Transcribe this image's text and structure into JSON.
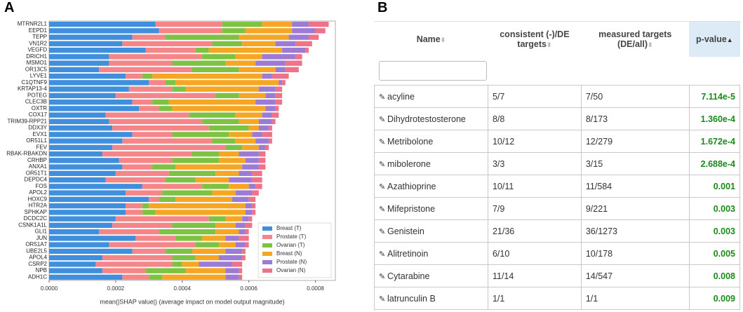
{
  "panels": {
    "a": "A",
    "b": "B"
  },
  "chart_data": {
    "type": "barh",
    "stacked": true,
    "legend": "lower right",
    "grid": false,
    "xlabel": "mean(|SHAP value|) (average impact on model output magnitude)",
    "xlim": [
      0,
      0.00086
    ],
    "xticks": [
      {
        "value": 0,
        "label": "0.0000"
      },
      {
        "value": 0.0002,
        "label": "0.0002"
      },
      {
        "value": 0.0004,
        "label": "0.0004"
      },
      {
        "value": 0.0006,
        "label": "0.0006"
      },
      {
        "value": 0.0008,
        "label": "0.0008"
      }
    ],
    "categories": [
      "MTRNR2L1",
      "EEPD1",
      "TEPP",
      "VN1R2",
      "VEGFD",
      "DRICH1",
      "MSMO1",
      "OR13C5",
      "LYVE1",
      "C1QTNF9",
      "KRTAP13-4",
      "POTEG",
      "CLEC3B",
      "OXTR",
      "COX17",
      "TRIM39-RPP21",
      "DDX3Y",
      "EVX1",
      "OR51L1",
      "FEV",
      "RBAK-RBAKDN",
      "CRHBP",
      "ANXA1",
      "OR51T1",
      "DEPDC4",
      "FOS",
      "APOL2",
      "HOXC9",
      "HTR2A",
      "SPHKAP",
      "DCDC2C",
      "CSNK1A1L",
      "GLI1",
      "JUN",
      "OR51A7",
      "UBE2L5",
      "APOL4",
      "CSRP2",
      "NPB",
      "ADH1C"
    ],
    "series": [
      {
        "name": "Breast (T)",
        "color": "#3f8fdc",
        "values": [
          0.00032,
          0.00033,
          0.00025,
          0.00022,
          0.00029,
          0.00018,
          0.00018,
          0.00015,
          0.00023,
          0.0003,
          0.00024,
          0.0002,
          0.00025,
          0.00027,
          0.00017,
          0.00018,
          0.00019,
          0.00025,
          0.00022,
          0.00019,
          0.00016,
          0.00021,
          0.00022,
          0.0002,
          0.00017,
          0.00028,
          0.00023,
          0.0003,
          0.00023,
          0.00023,
          0.0002,
          0.00019,
          0.00015,
          0.00026,
          0.00018,
          0.00025,
          0.00016,
          0.00014,
          0.00016,
          0.00022
        ]
      },
      {
        "name": "Prostate (T)",
        "color": "#f4868a",
        "values": [
          0.0002,
          0.00019,
          0.0001,
          0.00027,
          0.00015,
          0.00028,
          0.00019,
          0.00028,
          5e-05,
          5e-05,
          0.00013,
          0.0003,
          6e-05,
          6e-05,
          0.00025,
          0.00028,
          0.00029,
          0.00012,
          0.00027,
          0.00034,
          0.00027,
          0.00016,
          9e-05,
          0.00016,
          0.00018,
          0.00018,
          0.00011,
          3e-05,
          5e-05,
          5e-05,
          0.00028,
          0.00018,
          0.00018,
          0.00012,
          0.00026,
          0.0001,
          0.00021,
          0.00023,
          0.00013,
          8e-05
        ]
      },
      {
        "name": "Ovarian (T)",
        "color": "#7dc242",
        "values": [
          0.00012,
          7e-05,
          0.00022,
          9e-05,
          4e-05,
          0.0001,
          0.00016,
          0.00014,
          3e-05,
          3e-05,
          4e-05,
          7e-05,
          5e-05,
          4e-05,
          0.00014,
          0.00011,
          0.00012,
          0.00017,
          7e-05,
          5e-05,
          8e-05,
          0.00014,
          7e-05,
          0.00014,
          9e-05,
          8e-05,
          0.00015,
          5e-05,
          2e-05,
          4e-05,
          5e-05,
          0.00013,
          0.00017,
          8e-05,
          7e-05,
          8e-05,
          7e-05,
          3e-05,
          0.00012,
          4e-05
        ]
      },
      {
        "name": "Breast (N)",
        "color": "#f5a623",
        "values": [
          9e-05,
          0.00014,
          0.00015,
          0.0001,
          0.00022,
          8e-05,
          9e-05,
          0.00011,
          0.00033,
          0.00031,
          0.00022,
          8e-05,
          0.00026,
          0.00028,
          8e-05,
          6e-05,
          3e-05,
          7e-05,
          6e-05,
          5e-05,
          6e-05,
          8e-05,
          0.0002,
          7e-05,
          0.0001,
          6e-05,
          7e-05,
          0.00017,
          0.00029,
          0.00027,
          5e-05,
          6e-05,
          7e-05,
          7e-05,
          5e-05,
          0.0001,
          7e-05,
          5e-05,
          0.00012,
          0.00019
        ]
      },
      {
        "name": "Prostate (N)",
        "color": "#9b7bd3",
        "values": [
          5e-05,
          7e-05,
          6e-05,
          6e-05,
          7e-05,
          0.0001,
          9e-05,
          3e-05,
          3e-05,
          1e-05,
          5e-05,
          3e-05,
          6e-05,
          3e-05,
          3e-05,
          4e-05,
          3e-05,
          3e-05,
          4e-05,
          2e-05,
          6e-05,
          4e-05,
          5e-05,
          4e-05,
          7e-05,
          2e-05,
          5e-05,
          5e-05,
          2e-05,
          2e-05,
          2e-05,
          3e-05,
          2e-05,
          4e-05,
          3e-05,
          5e-05,
          7e-05,
          0.0001,
          4e-05,
          4e-05
        ]
      },
      {
        "name": "Ovarian (N)",
        "color": "#ee7389",
        "values": [
          6e-05,
          3e-05,
          3e-05,
          5e-05,
          1e-05,
          2e-05,
          5e-05,
          4e-05,
          5e-05,
          1e-05,
          2e-05,
          2e-05,
          2e-05,
          1e-05,
          2e-05,
          1e-05,
          1e-05,
          3e-05,
          1e-05,
          1e-05,
          2e-05,
          2e-05,
          2e-05,
          3e-05,
          3e-05,
          2e-05,
          2e-05,
          2e-05,
          1e-05,
          1e-05,
          1e-05,
          2e-05,
          1e-05,
          3e-05,
          1e-05,
          1e-05,
          1e-05,
          3e-05,
          1e-05,
          1e-05
        ]
      }
    ]
  },
  "table": {
    "columns": [
      "Name",
      "consistent (-)/DE targets",
      "measured targets (DE/all)",
      "p-value"
    ],
    "rows": [
      [
        "acyline",
        "5/7",
        "7/50",
        "7.114e-5"
      ],
      [
        "Dihydrotestosterone",
        "8/8",
        "8/173",
        "1.360e-4"
      ],
      [
        "Metribolone",
        "10/12",
        "12/279",
        "1.672e-4"
      ],
      [
        "mibolerone",
        "3/3",
        "3/15",
        "2.688e-4"
      ],
      [
        "Azathioprine",
        "10/11",
        "11/584",
        "0.001"
      ],
      [
        "Mifepristone",
        "7/9",
        "9/221",
        "0.003"
      ],
      [
        "Genistein",
        "21/36",
        "36/1273",
        "0.003"
      ],
      [
        "Alitretinoin",
        "6/10",
        "10/178",
        "0.005"
      ],
      [
        "Cytarabine",
        "11/14",
        "14/547",
        "0.008"
      ],
      [
        "latrunculin B",
        "1/1",
        "1/1",
        "0.009"
      ]
    ]
  }
}
